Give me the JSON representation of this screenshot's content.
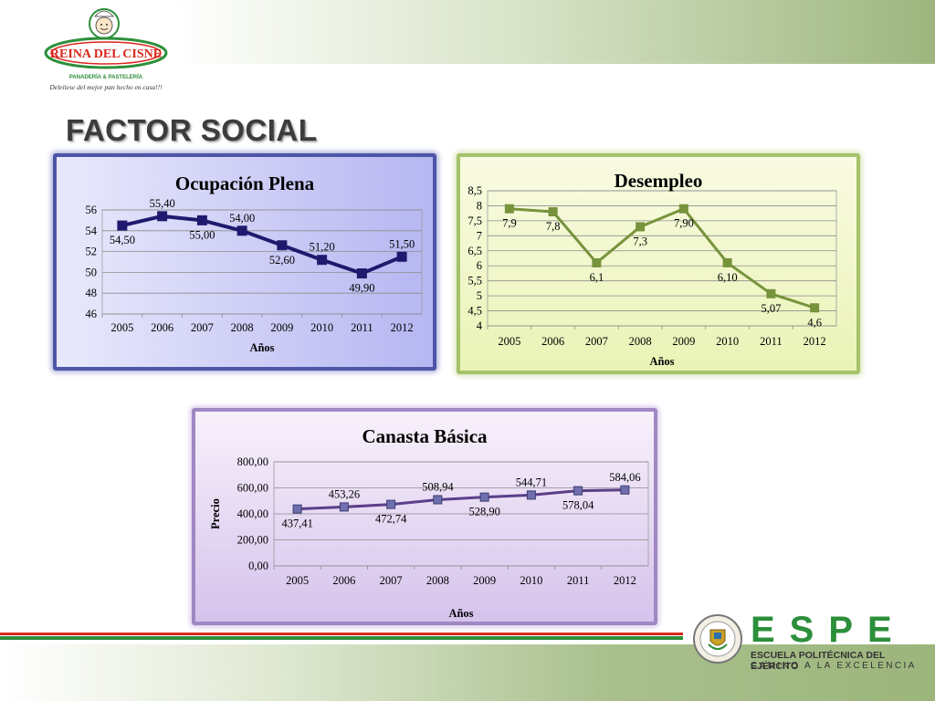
{
  "header": {
    "logo": {
      "brand": "REINA DEL CISNE",
      "subtitle": "PANADERÍA & PASTELERÍA",
      "tagline": "Deleítese del mejor pan hecho en casa!!!",
      "icon": "chef-logo-icon"
    },
    "title": "FACTOR SOCIAL"
  },
  "colors": {
    "ocupacion_line": "#1f1a6e",
    "desempleo_line": "#77933c",
    "canasta_line": "#5a3f88",
    "canasta_marker": "#6f6fb0",
    "stripe_red": "#d9261c",
    "stripe_green": "#2c8f3a",
    "espe_green": "#2c8f3a"
  },
  "footer": {
    "espe_word": "ESPE",
    "espe_line1": "ESCUELA POLITÉCNICA DEL EJÉRCITO",
    "espe_line2": "CAMINO A LA EXCELENCIA",
    "emblem_icon": "espe-emblem-icon"
  },
  "chart_data": [
    {
      "id": "ocupacion",
      "type": "line",
      "title": "Ocupación Plena",
      "xlabel": "Años",
      "ylabel": "",
      "x": [
        "2005",
        "2006",
        "2007",
        "2008",
        "2009",
        "2010",
        "2011",
        "2012"
      ],
      "series": [
        {
          "values": [
            54.5,
            55.4,
            55.0,
            54.0,
            52.6,
            51.2,
            49.9,
            51.5
          ]
        }
      ],
      "data_labels": [
        "54,50",
        "55,40",
        "55,00",
        "54,00",
        "52,60",
        "51,20",
        "49,90",
        "51,50"
      ],
      "label_positions": [
        "below",
        "above",
        "below",
        "above",
        "below",
        "above",
        "below",
        "above"
      ],
      "ylim": [
        46,
        56
      ],
      "yticks": [
        46,
        48,
        50,
        52,
        54,
        56
      ],
      "ytick_labels": [
        "46",
        "48",
        "50",
        "52",
        "54",
        "56"
      ],
      "grid": true,
      "marker": "square"
    },
    {
      "id": "desempleo",
      "type": "line",
      "title": "Desempleo",
      "xlabel": "Años",
      "ylabel": "",
      "x": [
        "2005",
        "2006",
        "2007",
        "2008",
        "2009",
        "2010",
        "2011",
        "2012"
      ],
      "series": [
        {
          "values": [
            7.9,
            7.8,
            6.1,
            7.3,
            7.9,
            6.1,
            5.07,
            4.6
          ]
        }
      ],
      "data_labels": [
        "7,9",
        "7,8",
        "6,1",
        "7,3",
        "7,90",
        "6,10",
        "5,07",
        "4,6"
      ],
      "label_positions": [
        "below",
        "below",
        "below",
        "below",
        "below",
        "below",
        "below",
        "below"
      ],
      "ylim": [
        4,
        8.5
      ],
      "yticks": [
        4,
        4.5,
        5,
        5.5,
        6,
        6.5,
        7,
        7.5,
        8,
        8.5
      ],
      "ytick_labels": [
        "4",
        "4,5",
        "5",
        "5,5",
        "6",
        "6,5",
        "7",
        "7,5",
        "8",
        "8,5"
      ],
      "grid": true,
      "marker": "square"
    },
    {
      "id": "canasta",
      "type": "line",
      "title": "Canasta Básica",
      "xlabel": "Años",
      "ylabel": "Precio",
      "x": [
        "2005",
        "2006",
        "2007",
        "2008",
        "2009",
        "2010",
        "2011",
        "2012"
      ],
      "series": [
        {
          "values": [
            437.41,
            453.26,
            472.74,
            508.94,
            528.9,
            544.71,
            578.04,
            584.06
          ]
        }
      ],
      "data_labels": [
        "437,41",
        "453,26",
        "472,74",
        "508,94",
        "528,90",
        "544,71",
        "578,04",
        "584,06"
      ],
      "label_positions": [
        "below",
        "above",
        "below",
        "above",
        "below",
        "above",
        "below",
        "above"
      ],
      "ylim": [
        0,
        800
      ],
      "yticks": [
        0,
        200,
        400,
        600,
        800
      ],
      "ytick_labels": [
        "0,00",
        "200,00",
        "400,00",
        "600,00",
        "800,00"
      ],
      "grid": true,
      "marker": "square"
    }
  ]
}
